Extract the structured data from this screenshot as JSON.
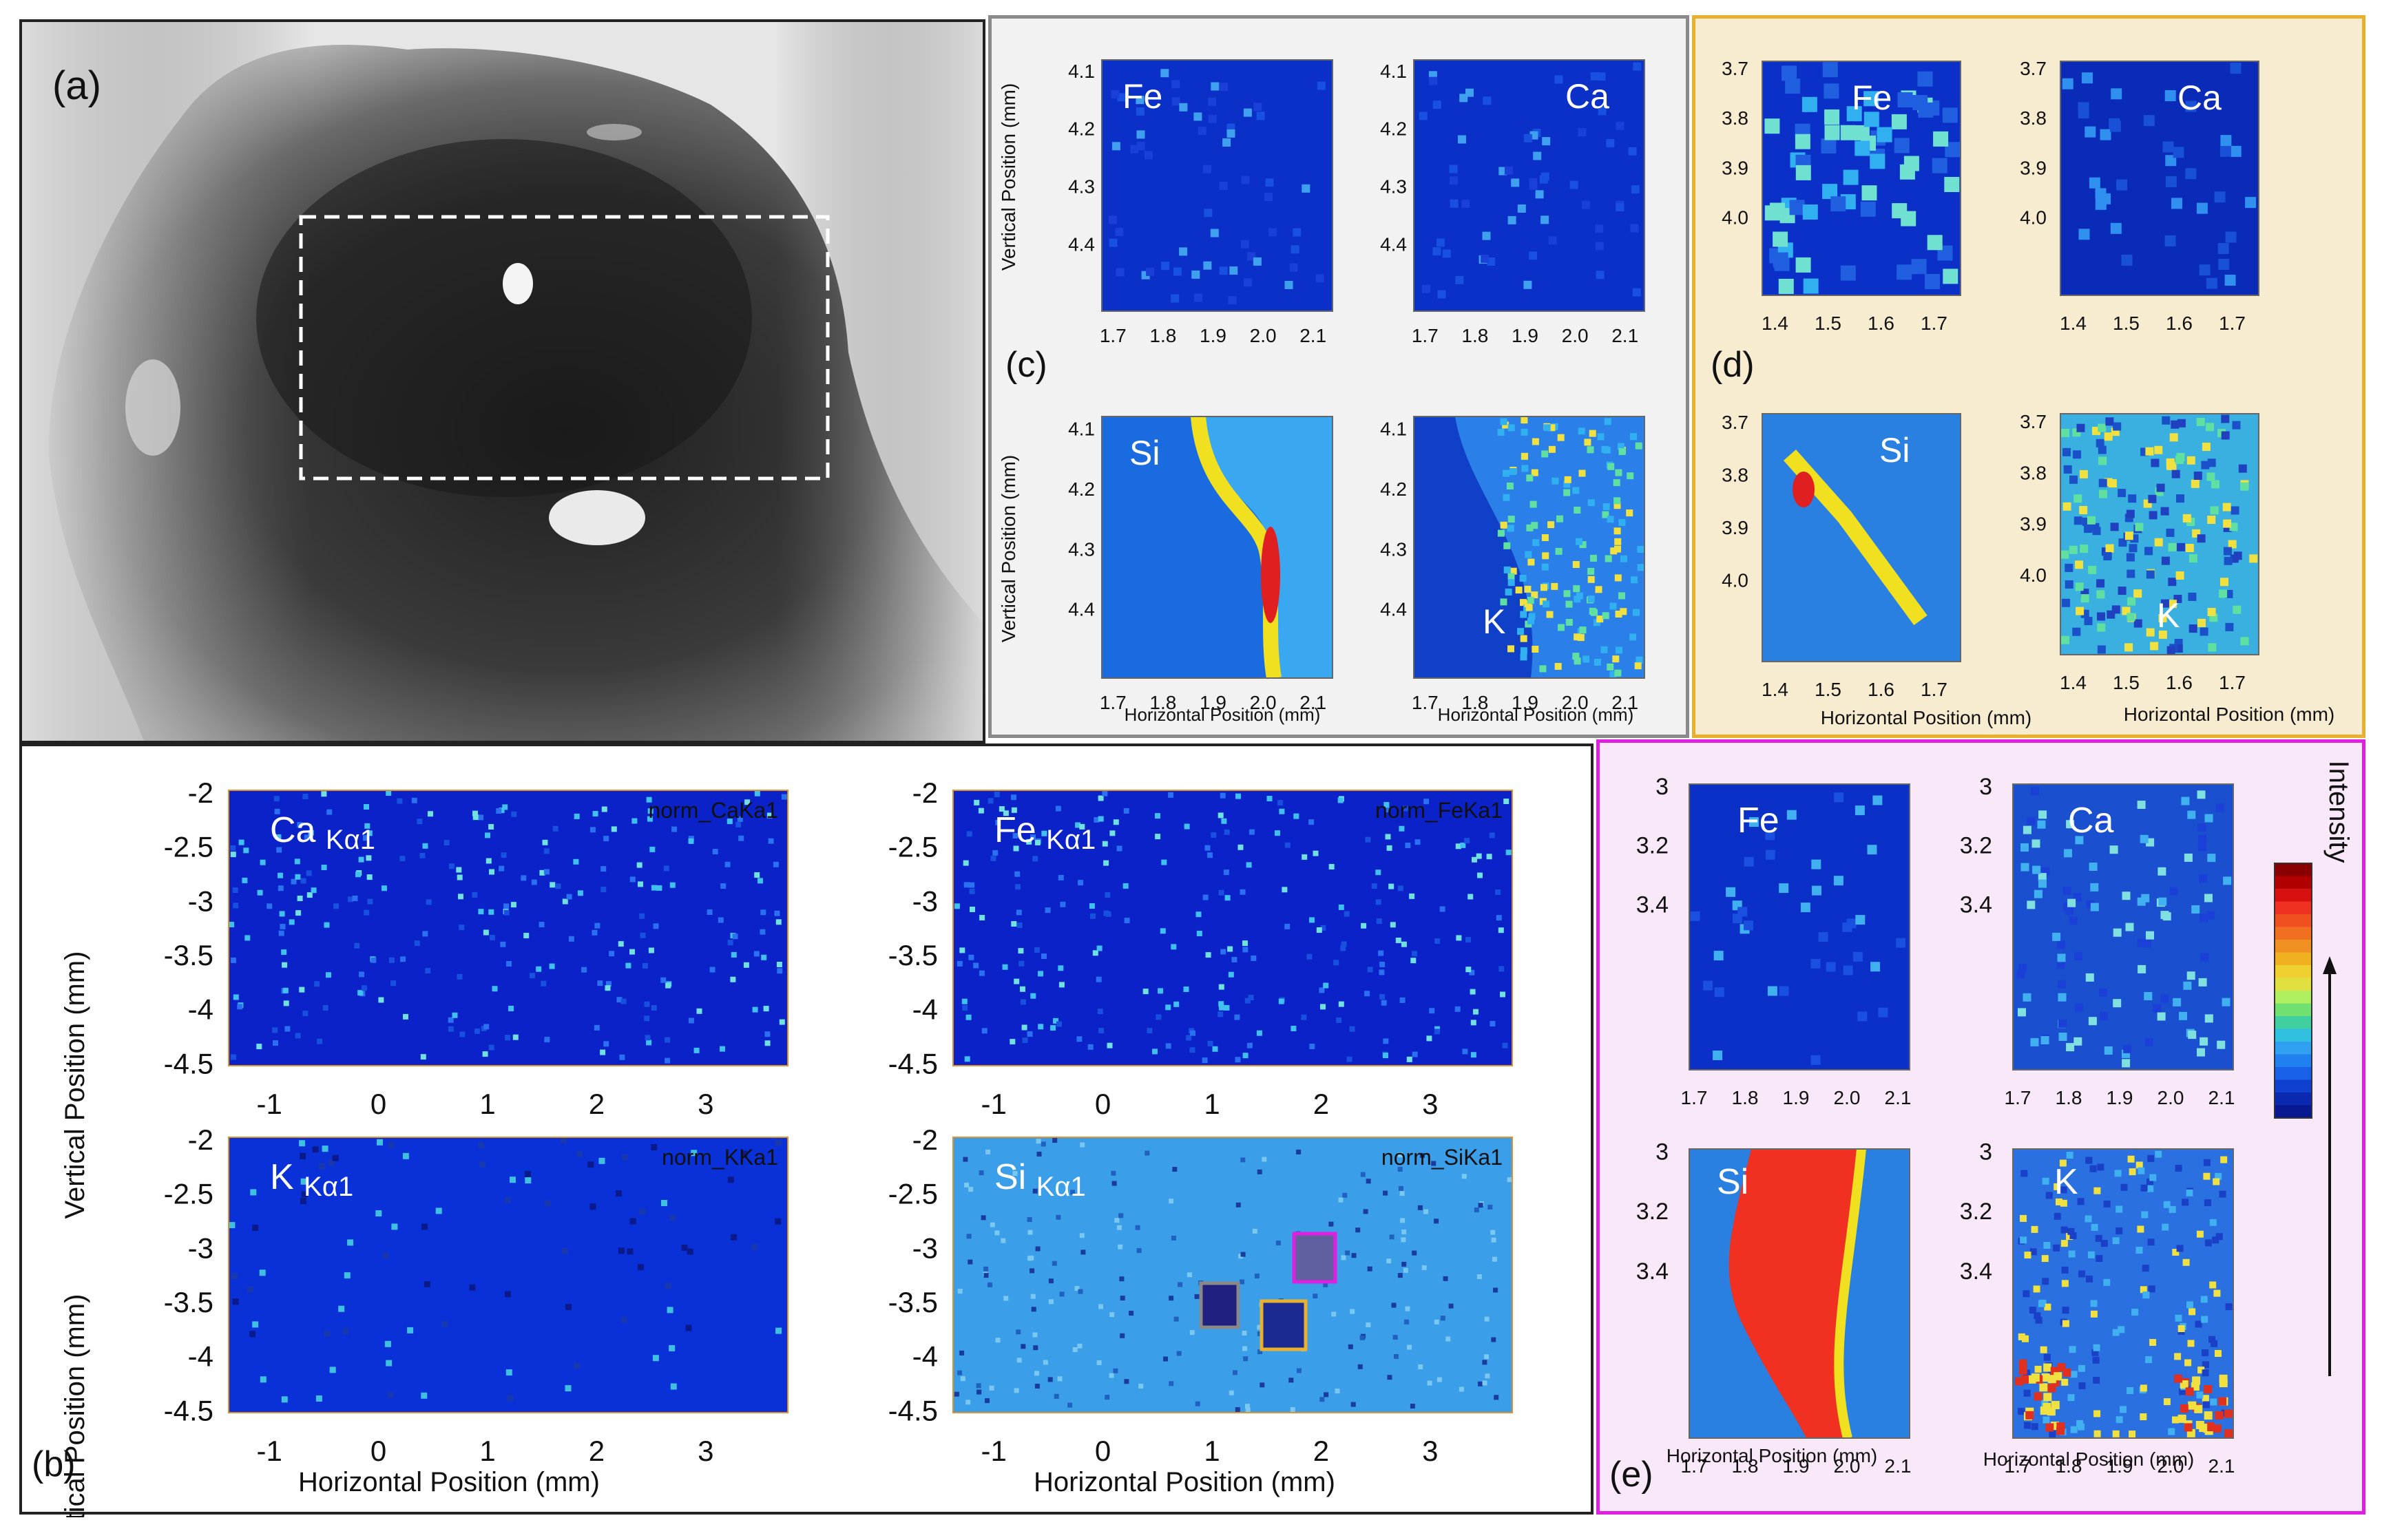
{
  "figure": {
    "panel_a": {
      "label": "(a)"
    },
    "panel_b": {
      "label": "(b)",
      "ylabel": "Vertical Position (mm)",
      "xlabel": "Horizontal Position (mm)",
      "y_ticks": [
        "-2",
        "-2.5",
        "-3",
        "-3.5",
        "-4",
        "-4.5"
      ],
      "x_ticks": [
        "-1",
        "0",
        "1",
        "2",
        "3"
      ],
      "maps": [
        {
          "element": "Ca",
          "line": "Kα1",
          "tag": "norm_CaKa1"
        },
        {
          "element": "Fe",
          "line": "Kα1",
          "tag": "norm_FeKa1"
        },
        {
          "element": "K",
          "line": "Kα1",
          "tag": "norm_KKa1"
        },
        {
          "element": "Si",
          "line": "Kα1",
          "tag": "norm_SiKa1"
        }
      ]
    },
    "panel_c": {
      "label": "(c)",
      "ylabel": "Vertical Position (mm)",
      "xlabel": "Horizontal Position (mm)",
      "y_ticks": [
        "4.1",
        "4.2",
        "4.3",
        "4.4"
      ],
      "x_ticks": [
        "1.7",
        "1.8",
        "1.9",
        "2.0",
        "2.1"
      ],
      "maps": [
        "Fe",
        "Ca",
        "Si",
        "K"
      ]
    },
    "panel_d": {
      "label": "(d)",
      "xlabel": "Horizontal Position (mm)",
      "y_ticks": [
        "3.7",
        "3.8",
        "3.9",
        "4.0"
      ],
      "x_ticks": [
        "1.4",
        "1.5",
        "1.6",
        "1.7"
      ],
      "maps": [
        "Fe",
        "Ca",
        "Si",
        "K"
      ]
    },
    "panel_e": {
      "label": "(e)",
      "xlabel": "Horizontal Position (mm)",
      "y_ticks": [
        "3",
        "3.2",
        "3.4"
      ],
      "x_ticks": [
        "1.7",
        "1.8",
        "1.9",
        "2.0",
        "2.1"
      ],
      "maps": [
        "Fe",
        "Ca",
        "Si",
        "K"
      ],
      "colorbar_label": "Intensity"
    },
    "colors": {
      "panel_c_border": "#8a8a8a",
      "panel_d_border": "#e8b02c",
      "panel_d_bg": "#f8ecd0",
      "panel_e_border": "#e020e0",
      "panel_e_bg": "#f8e8f8",
      "map_dark": "#0a1a9a",
      "map_blue": "#1040d8"
    }
  }
}
